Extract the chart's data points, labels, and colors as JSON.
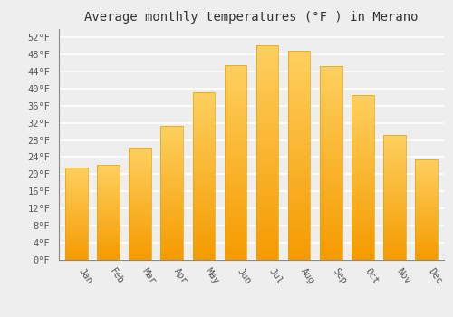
{
  "months": [
    "Jan",
    "Feb",
    "Mar",
    "Apr",
    "May",
    "Jun",
    "Jul",
    "Aug",
    "Sep",
    "Oct",
    "Nov",
    "Dec"
  ],
  "values": [
    21.5,
    22.2,
    26.2,
    31.3,
    39.2,
    45.5,
    50.0,
    48.8,
    45.3,
    38.5,
    29.1,
    23.5
  ],
  "bar_color_top": "#FDC840",
  "bar_color_bottom": "#F59B00",
  "bar_edge_color": "#E8A000",
  "title": "Average monthly temperatures (°F ) in Merano",
  "ylim": [
    0,
    54
  ],
  "yticks": [
    0,
    4,
    8,
    12,
    16,
    20,
    24,
    28,
    32,
    36,
    40,
    44,
    48,
    52
  ],
  "ytick_labels": [
    "0°F",
    "4°F",
    "8°F",
    "12°F",
    "16°F",
    "20°F",
    "24°F",
    "28°F",
    "32°F",
    "36°F",
    "40°F",
    "44°F",
    "48°F",
    "52°F"
  ],
  "background_color": "#eeeeee",
  "grid_color": "#ffffff",
  "title_fontsize": 10,
  "tick_fontsize": 7.5,
  "font_family": "monospace",
  "bar_width": 0.7
}
